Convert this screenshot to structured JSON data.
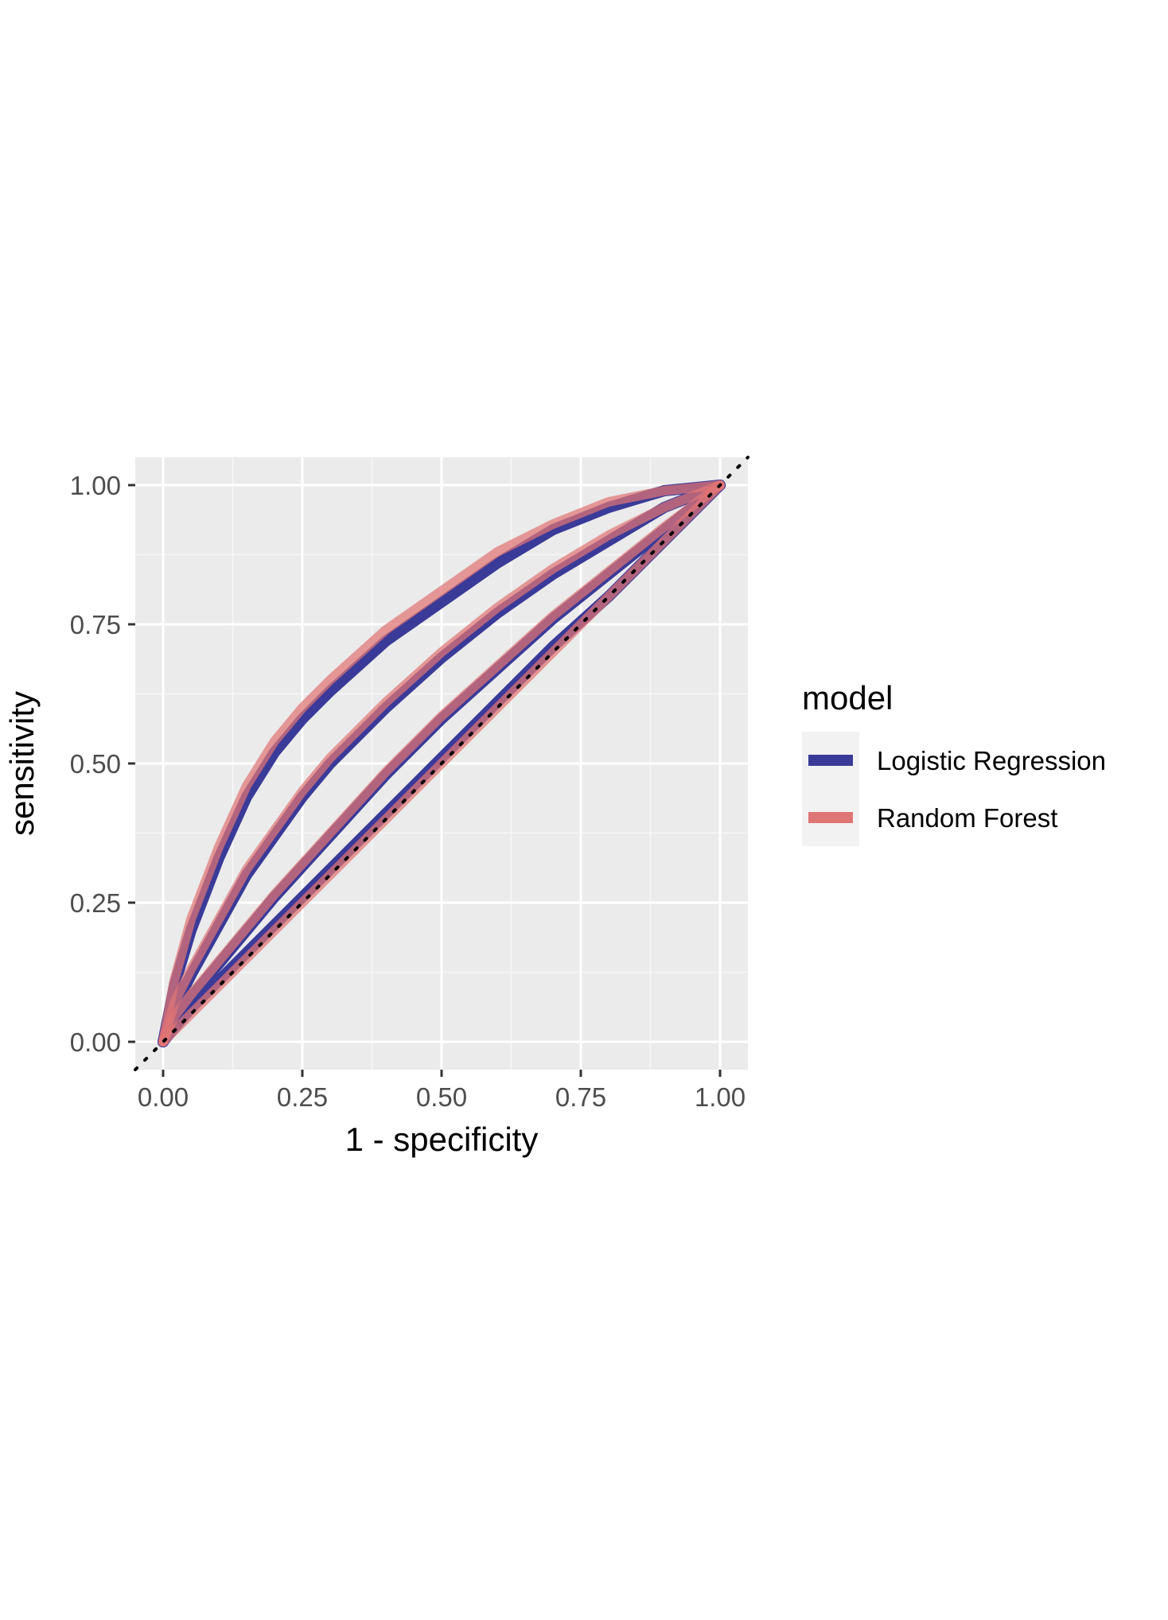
{
  "chart_data": {
    "type": "line",
    "title": "",
    "xlabel": "1 - specificity",
    "ylabel": "sensitivity",
    "xlim": [
      -0.05,
      1.05
    ],
    "ylim": [
      -0.05,
      1.05
    ],
    "x_ticks": [
      "0.00",
      "0.25",
      "0.50",
      "0.75",
      "1.00"
    ],
    "y_ticks": [
      "0.00",
      "0.25",
      "0.50",
      "0.75",
      "1.00"
    ],
    "grid": true,
    "background": "#ebebeb",
    "reference_line": {
      "style": "dotted",
      "color": "#000000",
      "from": [
        -0.05,
        -0.05
      ],
      "to": [
        1.05,
        1.05
      ]
    },
    "legend": {
      "title": "model",
      "placement": "right",
      "entries": [
        {
          "label": "Logistic Regression",
          "color": "#3a3a98"
        },
        {
          "label": "Random Forest",
          "color": "#e07575"
        }
      ]
    },
    "series": [
      {
        "name": "Logistic Regression",
        "color": "#3a3a98",
        "curves": [
          {
            "x": [
              0,
              0.02,
              0.05,
              0.1,
              0.15,
              0.2,
              0.25,
              0.3,
              0.4,
              0.5,
              0.6,
              0.7,
              0.8,
              0.9,
              1.0
            ],
            "y": [
              0,
              0.1,
              0.2,
              0.33,
              0.44,
              0.52,
              0.58,
              0.63,
              0.72,
              0.79,
              0.86,
              0.92,
              0.96,
              0.99,
              1.0
            ]
          },
          {
            "x": [
              0,
              0.02,
              0.05,
              0.1,
              0.15,
              0.2,
              0.25,
              0.3,
              0.4,
              0.5,
              0.6,
              0.7,
              0.8,
              0.9,
              1.0
            ],
            "y": [
              0,
              0.06,
              0.12,
              0.21,
              0.3,
              0.37,
              0.44,
              0.5,
              0.6,
              0.69,
              0.77,
              0.84,
              0.9,
              0.96,
              1.0
            ]
          },
          {
            "x": [
              0,
              0.02,
              0.05,
              0.1,
              0.2,
              0.3,
              0.4,
              0.5,
              0.6,
              0.7,
              0.8,
              0.9,
              1.0
            ],
            "y": [
              0,
              0.04,
              0.08,
              0.14,
              0.26,
              0.37,
              0.48,
              0.58,
              0.67,
              0.76,
              0.84,
              0.92,
              1.0
            ]
          },
          {
            "x": [
              0,
              0.02,
              0.05,
              0.1,
              0.2,
              0.3,
              0.4,
              0.5,
              0.6,
              0.7,
              0.8,
              0.9,
              1.0
            ],
            "y": [
              0,
              0.025,
              0.06,
              0.11,
              0.21,
              0.31,
              0.41,
              0.51,
              0.61,
              0.71,
              0.8,
              0.9,
              1.0
            ]
          }
        ]
      },
      {
        "name": "Random Forest",
        "color": "#e07575",
        "curves": [
          {
            "x": [
              0,
              0.02,
              0.05,
              0.1,
              0.15,
              0.2,
              0.25,
              0.3,
              0.4,
              0.5,
              0.6,
              0.7,
              0.8,
              0.9,
              1.0
            ],
            "y": [
              0,
              0.11,
              0.22,
              0.35,
              0.46,
              0.54,
              0.6,
              0.65,
              0.74,
              0.81,
              0.88,
              0.93,
              0.97,
              0.99,
              1.0
            ]
          },
          {
            "x": [
              0,
              0.02,
              0.05,
              0.1,
              0.15,
              0.2,
              0.25,
              0.3,
              0.4,
              0.5,
              0.6,
              0.7,
              0.8,
              0.9,
              1.0
            ],
            "y": [
              0,
              0.07,
              0.13,
              0.22,
              0.31,
              0.38,
              0.45,
              0.51,
              0.61,
              0.7,
              0.78,
              0.85,
              0.91,
              0.96,
              1.0
            ]
          },
          {
            "x": [
              0,
              0.02,
              0.05,
              0.1,
              0.2,
              0.3,
              0.4,
              0.5,
              0.6,
              0.7,
              0.8,
              0.9,
              1.0
            ],
            "y": [
              0,
              0.045,
              0.085,
              0.145,
              0.265,
              0.375,
              0.485,
              0.585,
              0.675,
              0.765,
              0.845,
              0.925,
              1.0
            ]
          },
          {
            "x": [
              0,
              0.02,
              0.05,
              0.1,
              0.2,
              0.3,
              0.4,
              0.5,
              0.6,
              0.7,
              0.8,
              0.9,
              1.0
            ],
            "y": [
              0,
              0.02,
              0.05,
              0.1,
              0.2,
              0.3,
              0.4,
              0.5,
              0.6,
              0.7,
              0.8,
              0.9,
              1.0
            ]
          }
        ]
      }
    ]
  }
}
